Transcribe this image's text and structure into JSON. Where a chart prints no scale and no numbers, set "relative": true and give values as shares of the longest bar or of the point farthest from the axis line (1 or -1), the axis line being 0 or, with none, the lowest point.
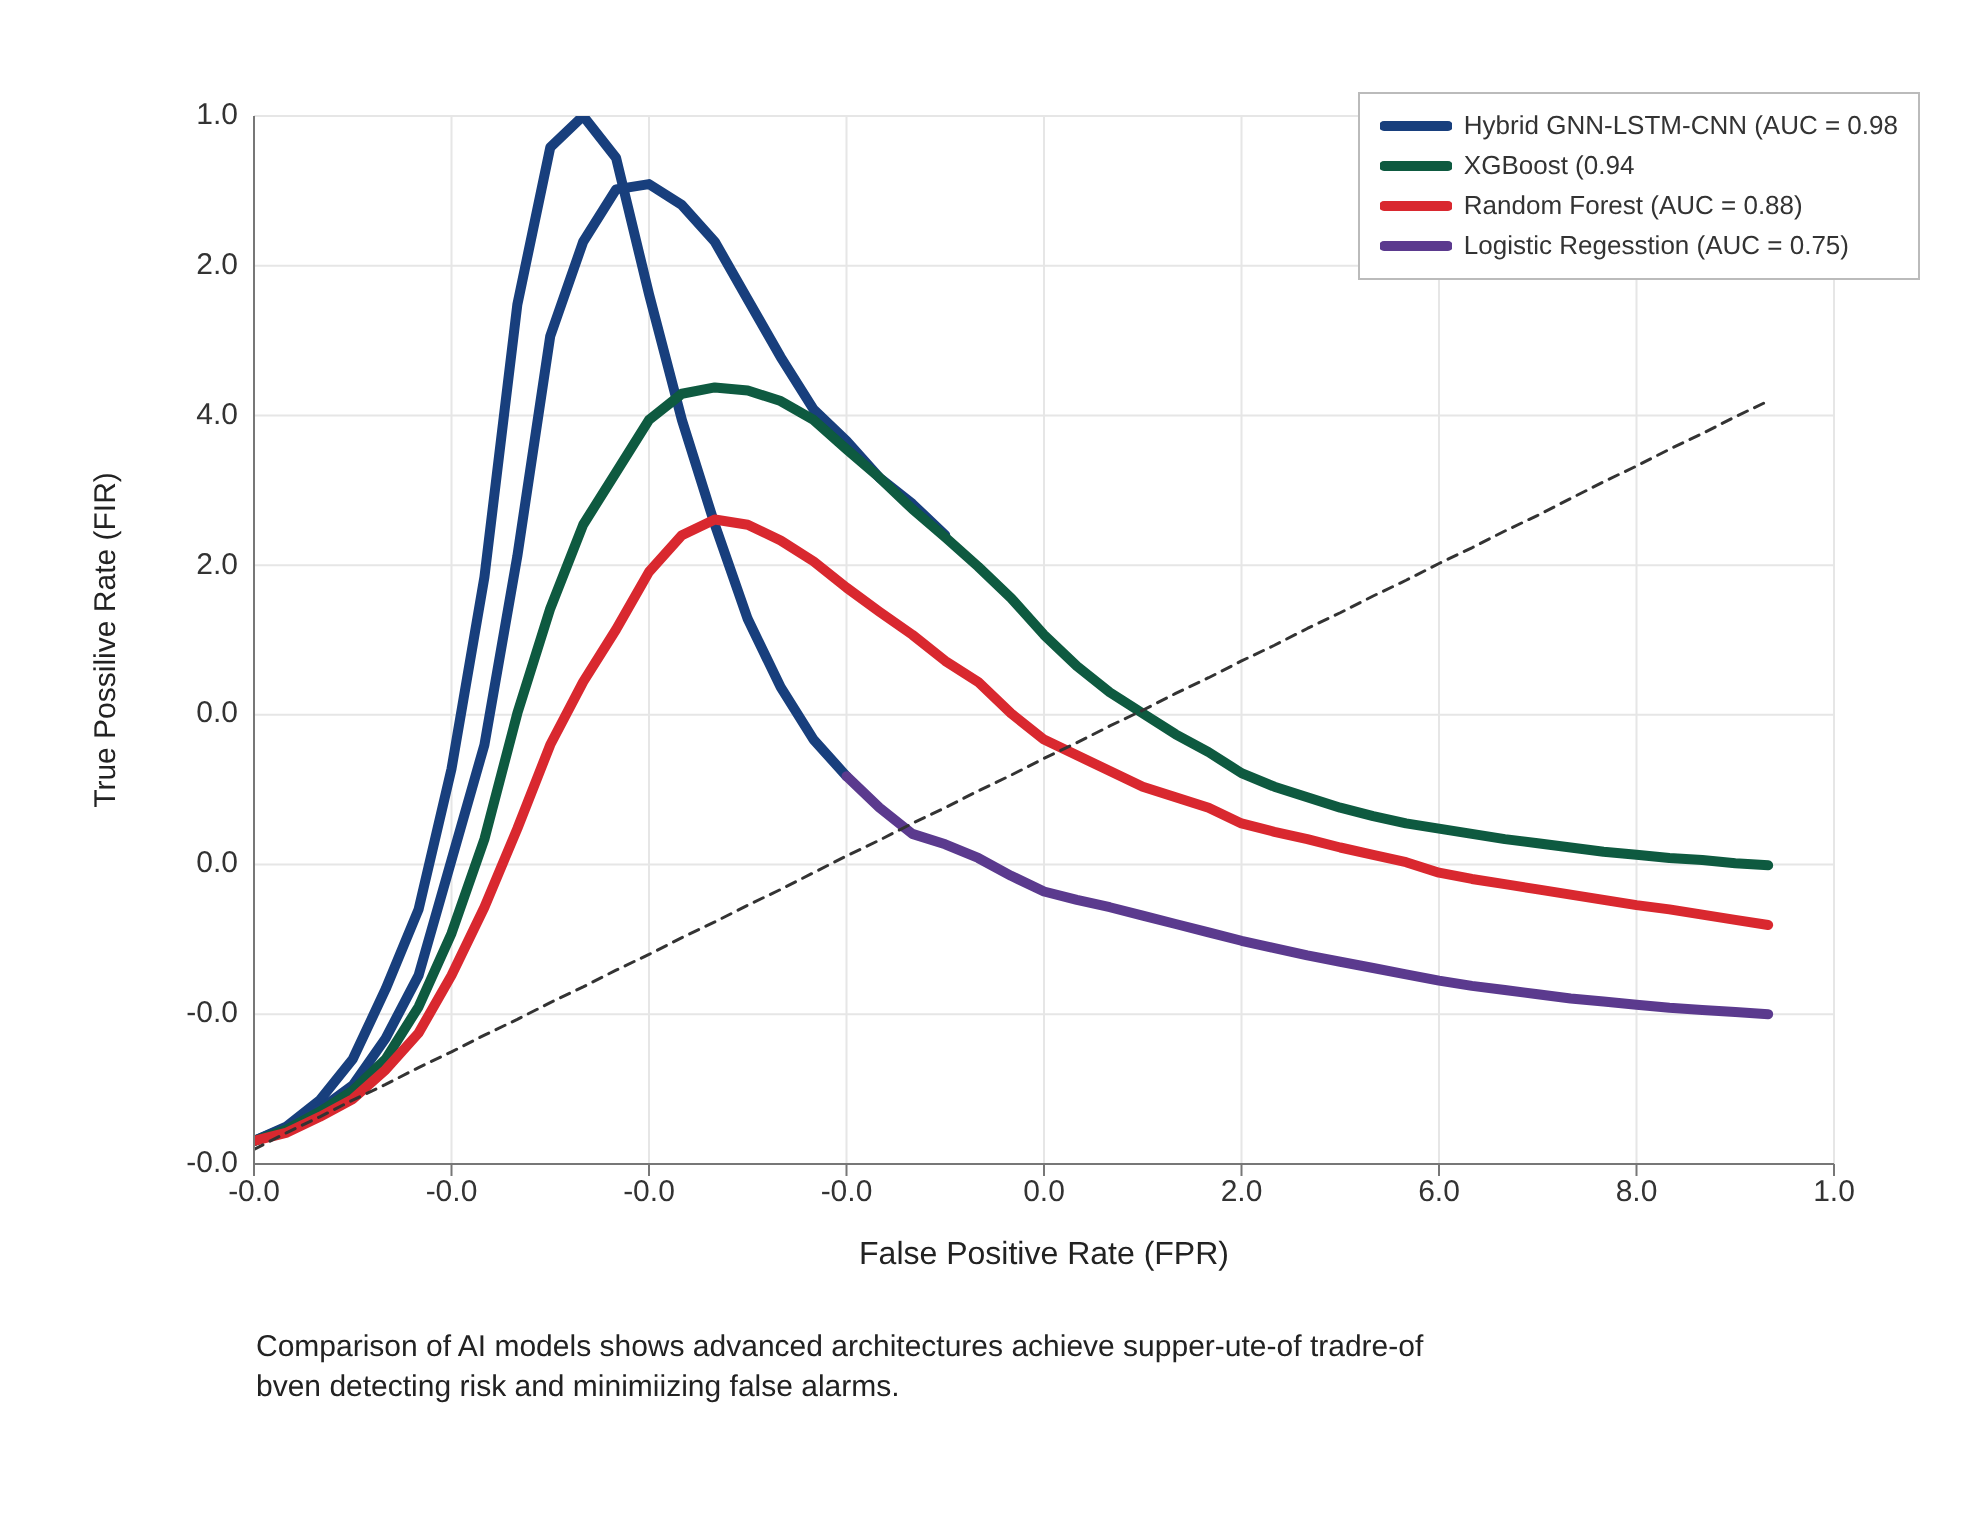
{
  "chart_data": {
    "type": "line",
    "xlabel": "False Positive Rate (FPR)",
    "ylabel": "True Possilive Rate (FIR)",
    "relative": true,
    "categories": [
      "-0.0",
      null,
      null,
      null,
      null,
      null,
      "-0.0",
      null,
      null,
      null,
      null,
      null,
      "-0.0",
      null,
      null,
      null,
      null,
      null,
      "-0.0",
      null,
      null,
      null,
      null,
      null,
      "0.0",
      null,
      null,
      null,
      null,
      null,
      "2.0",
      null,
      null,
      null,
      null,
      null,
      "6.0",
      null,
      null,
      null,
      null,
      null,
      "8.0",
      null,
      null,
      null,
      null,
      null,
      "1.0"
    ],
    "grid": true,
    "legend": "top right",
    "marker": "none",
    "line_style": "solid",
    "series": [
      {
        "name": "Hybrid GNN-LSTM-CNN (AUC = 0.98",
        "color": "#183f7d",
        "values": [
          0.022,
          0.036,
          0.061,
          0.1,
          0.167,
          0.243,
          0.377,
          0.56,
          0.82,
          0.97,
          1,
          0.96,
          0.83,
          0.71,
          0.61,
          0.52,
          0.455,
          0.405,
          0.37,
          null,
          null,
          null,
          null,
          null,
          null,
          null,
          null,
          null,
          null,
          null,
          null,
          null,
          null,
          null,
          null,
          null,
          null,
          null,
          null,
          null,
          null,
          null,
          null,
          null,
          null,
          null,
          null,
          null,
          null
        ]
      },
      {
        "color": "#183f7d",
        "values": [
          0.022,
          0.035,
          0.052,
          0.075,
          0.12,
          0.18,
          0.29,
          0.4,
          0.58,
          0.79,
          0.88,
          0.93,
          0.935,
          0.915,
          0.88,
          0.825,
          0.77,
          0.72,
          0.69,
          0.655,
          0.63,
          0.6,
          null,
          null,
          null,
          null,
          null,
          null,
          null,
          null,
          null,
          null,
          null,
          null,
          null,
          null,
          null,
          null,
          null,
          null,
          null,
          null,
          null,
          null,
          null,
          null,
          null,
          null,
          null
        ]
      },
      {
        "name": "XGBoost (0.94",
        "color": "#0e5a40",
        "values": [
          0.022,
          0.033,
          0.05,
          0.07,
          0.1,
          0.15,
          0.22,
          0.31,
          0.43,
          0.53,
          0.61,
          0.66,
          0.71,
          0.735,
          0.741,
          0.738,
          0.728,
          0.71,
          0.682,
          0.655,
          0.625,
          0.598,
          0.57,
          0.54,
          0.505,
          0.475,
          0.45,
          0.43,
          0.41,
          0.393,
          0.373,
          0.36,
          0.35,
          0.34,
          0.332,
          0.325,
          0.32,
          0.315,
          0.31,
          0.306,
          0.302,
          0.298,
          0.295,
          0.292,
          0.29,
          0.287,
          0.285,
          null,
          null
        ]
      },
      {
        "name": "Random Forest (AUC = 0.88)",
        "color": "#d9282f",
        "values": [
          0.022,
          0.03,
          0.045,
          0.062,
          0.09,
          0.125,
          0.18,
          0.245,
          0.32,
          0.4,
          0.46,
          0.51,
          0.565,
          0.6,
          0.615,
          0.61,
          0.595,
          0.575,
          0.55,
          0.527,
          0.505,
          0.48,
          0.46,
          0.43,
          0.405,
          0.39,
          0.375,
          0.36,
          0.35,
          0.34,
          0.325,
          0.317,
          0.31,
          0.302,
          0.295,
          0.288,
          0.278,
          0.272,
          0.267,
          0.262,
          0.257,
          0.252,
          0.247,
          0.243,
          0.238,
          0.233,
          0.228,
          null,
          null
        ]
      },
      {
        "name": "Logistic Regesstion (AUC = 0.75)",
        "color": "#5b3a8e",
        "values": [
          null,
          null,
          null,
          null,
          null,
          null,
          null,
          null,
          null,
          null,
          null,
          null,
          null,
          null,
          null,
          null,
          null,
          null,
          0.37,
          0.34,
          0.315,
          0.305,
          0.292,
          0.275,
          0.26,
          0.252,
          0.245,
          0.237,
          0.229,
          0.221,
          0.213,
          0.206,
          0.199,
          0.193,
          0.187,
          0.181,
          0.175,
          0.17,
          0.166,
          0.162,
          0.158,
          0.155,
          0.152,
          0.149,
          0.147,
          0.145,
          0.143,
          null,
          null
        ]
      },
      {
        "color": "#333333",
        "line_style": "dashed",
        "values": [
          0.014,
          0.03,
          0.045,
          0.061,
          0.076,
          0.092,
          0.107,
          0.123,
          0.138,
          0.154,
          0.169,
          0.185,
          0.2,
          0.216,
          0.231,
          0.247,
          0.262,
          0.278,
          0.294,
          0.309,
          0.325,
          0.34,
          0.356,
          0.371,
          0.387,
          0.402,
          0.418,
          0.433,
          0.449,
          0.464,
          0.48,
          0.495,
          0.511,
          0.526,
          0.542,
          0.557,
          0.573,
          0.588,
          0.604,
          0.619,
          0.635,
          0.651,
          0.666,
          0.682,
          0.697,
          0.713,
          0.728,
          null,
          null
        ]
      }
    ],
    "annotations": [
      "Comparison of AI models shows advanced architectures achieve supper-ute-of tradre-of bven detecting risk and minimiizing false alarms.",
      "-0.0",
      "-0.0",
      "0.0",
      "0.0",
      "2.0",
      "4.0",
      "2.0",
      "1.0"
    ]
  }
}
